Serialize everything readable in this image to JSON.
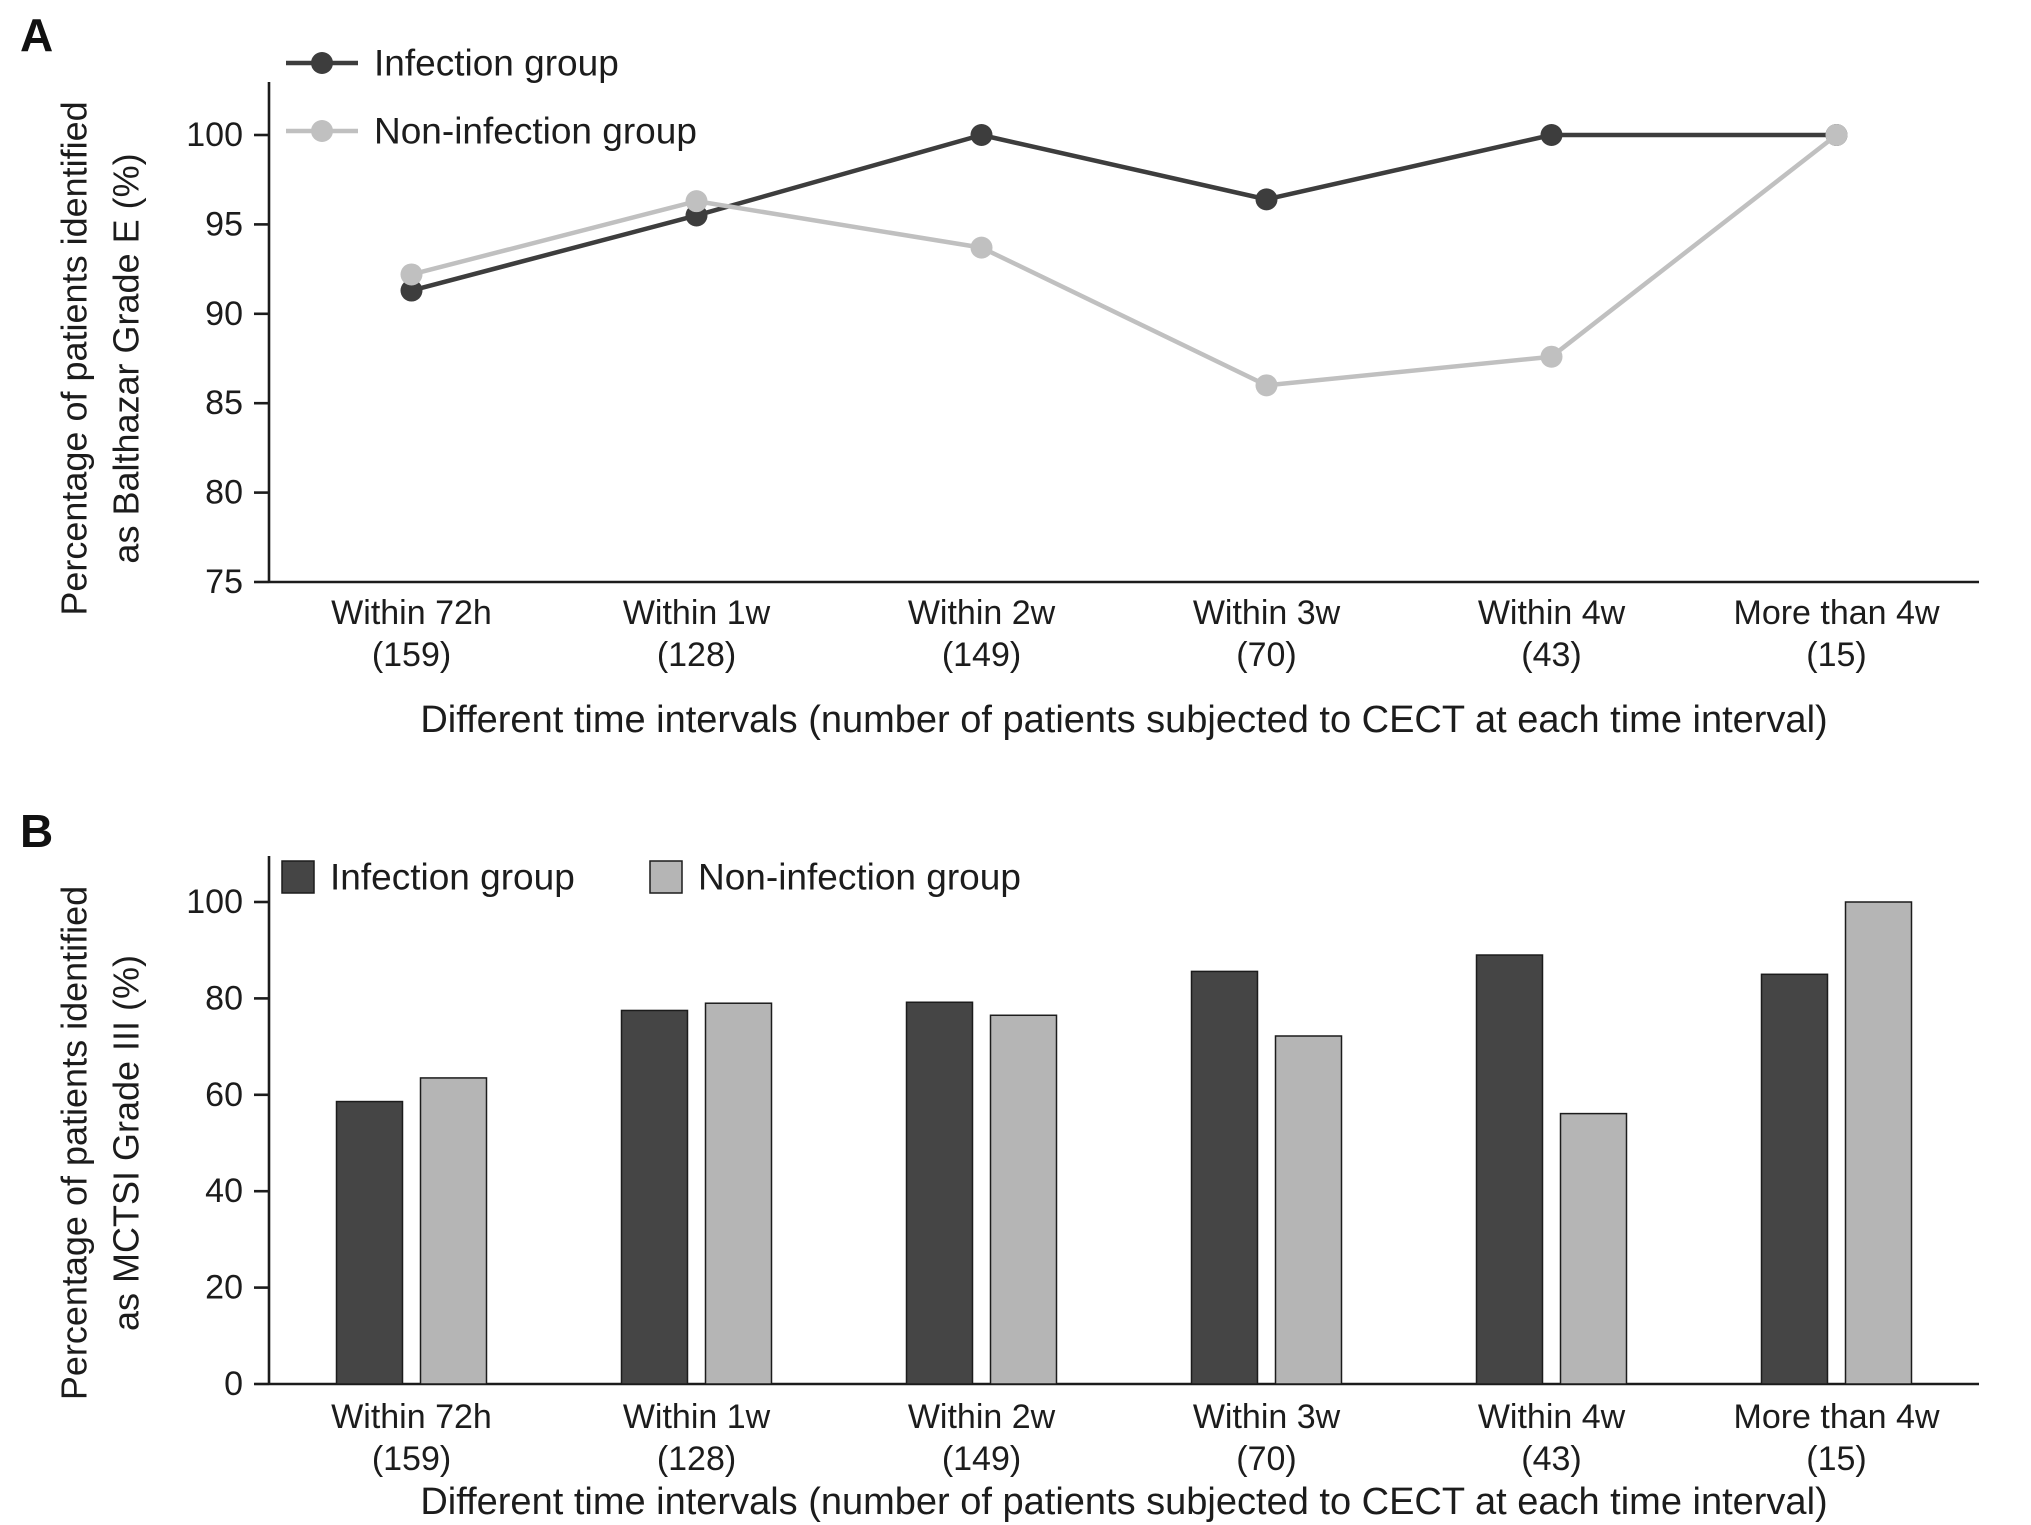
{
  "figure": {
    "background": "#ffffff",
    "axis_color": "#1c1c1c"
  },
  "chart_data": [
    {
      "panel_label": "A",
      "type": "line",
      "title": "",
      "categories": [
        "Within 72h",
        "Within 1w",
        "Within 2w",
        "Within 3w",
        "Within 4w",
        "More than 4w"
      ],
      "category_counts": [
        "(159)",
        "(128)",
        "(149)",
        "(70)",
        "(43)",
        "(15)"
      ],
      "series": [
        {
          "name": "Infection group",
          "color": "#3d3d3d",
          "values": [
            91.3,
            95.5,
            100,
            96.4,
            100,
            100
          ]
        },
        {
          "name": "Non-infection group",
          "color": "#c0c0c0",
          "values": [
            92.2,
            96.3,
            93.7,
            86.0,
            87.6,
            100
          ]
        }
      ],
      "ylabel_lines": [
        "Percentage of patients identified",
        "as Balthazar Grade E (%)"
      ],
      "xlabel": "Different time intervals (number of patients subjected to CECT at each time interval)",
      "ylim": [
        75,
        100
      ],
      "yticks": [
        75,
        80,
        85,
        90,
        95,
        100
      ],
      "legend_position": "top-left",
      "grid": false
    },
    {
      "panel_label": "B",
      "type": "bar",
      "title": "",
      "categories": [
        "Within 72h",
        "Within 1w",
        "Within 2w",
        "Within 3w",
        "Within 4w",
        "More than 4w"
      ],
      "category_counts": [
        "(159)",
        "(128)",
        "(149)",
        "(70)",
        "(43)",
        "(15)"
      ],
      "series": [
        {
          "name": "Infection group",
          "color": "#454545",
          "values": [
            58.6,
            77.5,
            79.2,
            85.6,
            89.0,
            85.0
          ]
        },
        {
          "name": "Non-infection group",
          "color": "#b5b5b5",
          "values": [
            63.5,
            79.0,
            76.5,
            72.2,
            56.1,
            100
          ]
        }
      ],
      "ylabel_lines": [
        "Percentage of patients identified",
        "as MCTSI Grade III (%)"
      ],
      "xlabel": "Different time intervals (number of patients subjected to CECT at each time interval)",
      "ylim": [
        0,
        100
      ],
      "yticks": [
        0,
        20,
        40,
        60,
        80,
        100
      ],
      "legend_position": "top-inside",
      "grid": false
    }
  ]
}
